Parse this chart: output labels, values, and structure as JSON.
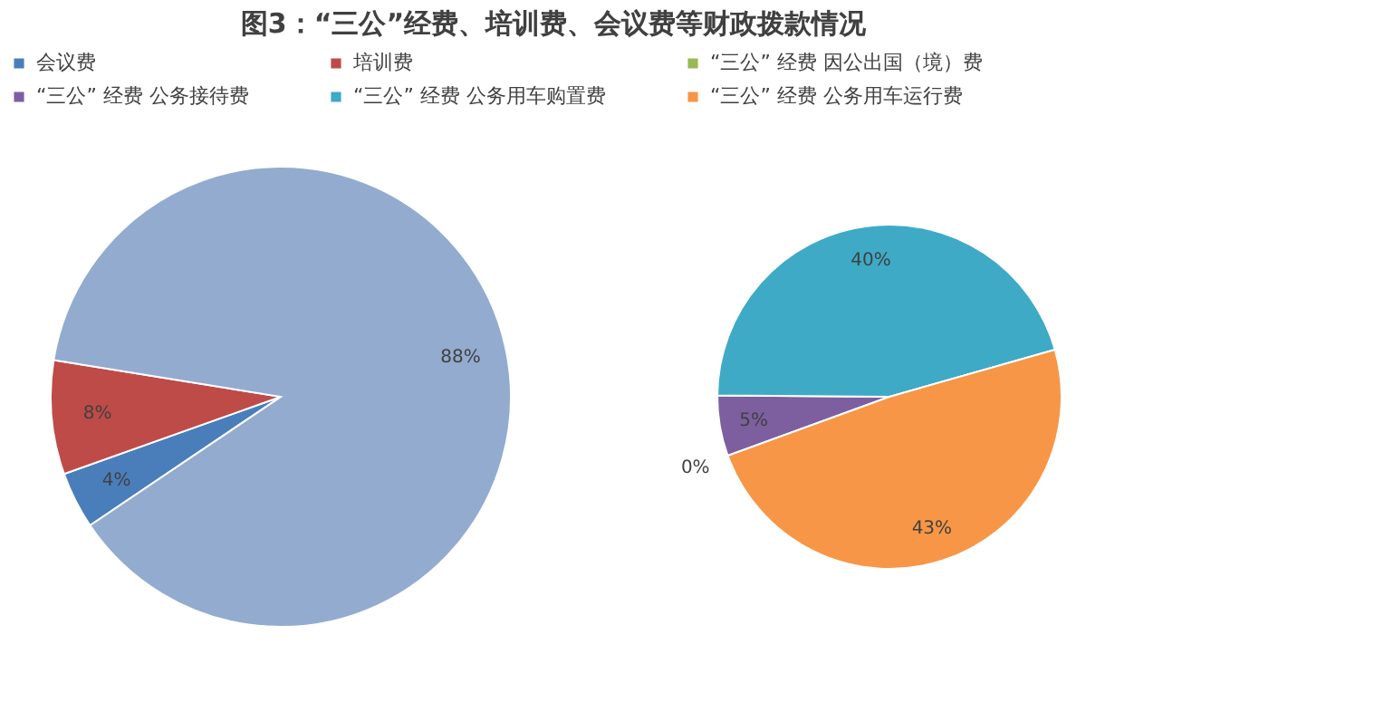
{
  "chart_data": [
    {
      "type": "pie",
      "title": "图3：“三公”经费、培训费、会议费等财政拨款情况",
      "legend": "top",
      "categories": [
        "会议费",
        "培训费",
        null
      ],
      "values": [
        4,
        8,
        88
      ],
      "value_labels": [
        "4%",
        "8%",
        "88%"
      ],
      "colors": [
        "#4a7ebb",
        "#be4b48",
        "#93abcf"
      ]
    },
    {
      "type": "pie",
      "legend": "top",
      "categories": [
        "“三公” 经费 因公出国（境）费",
        "“三公” 经费 公务接待费",
        "“三公” 经费 公务用车购置费",
        "“三公” 经费 公务用车运行费"
      ],
      "values": [
        0,
        5,
        40,
        43
      ],
      "value_labels": [
        "0%",
        "5%",
        "40%",
        "43%"
      ],
      "colors": [
        "#98b954",
        "#7d5fa0",
        "#3eaac6",
        "#f79646"
      ]
    }
  ]
}
